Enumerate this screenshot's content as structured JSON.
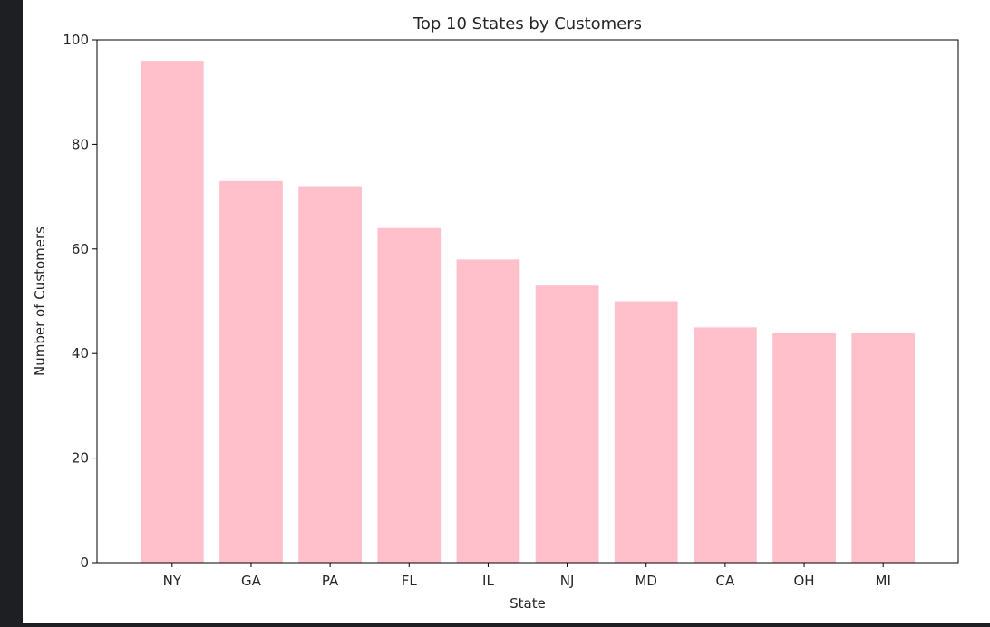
{
  "chart_data": {
    "type": "bar",
    "title": "Top 10 States by Customers",
    "xlabel": "State",
    "ylabel": "Number of Customers",
    "categories": [
      "NY",
      "GA",
      "PA",
      "FL",
      "IL",
      "NJ",
      "MD",
      "CA",
      "OH",
      "MI"
    ],
    "values": [
      96,
      73,
      72,
      64,
      58,
      53,
      50,
      45,
      44,
      44
    ],
    "ylim": [
      0,
      100
    ],
    "yticks": [
      0,
      20,
      40,
      60,
      80,
      100
    ],
    "bar_color": "#ffc0cb",
    "grid": false,
    "legend": "none"
  }
}
